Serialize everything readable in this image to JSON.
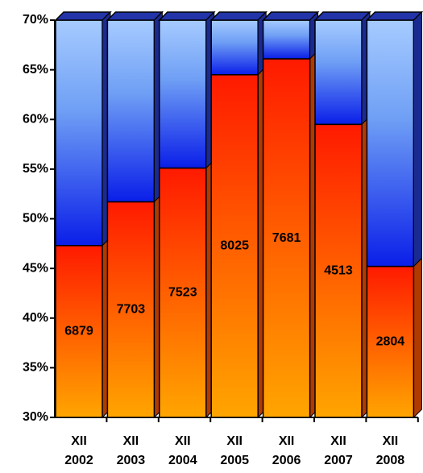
{
  "chart_data": {
    "type": "bar",
    "categories": [
      "XII 2002",
      "XII 2003",
      "XII 2004",
      "XII 2005",
      "XII 2006",
      "XII 2007",
      "XII 2008"
    ],
    "values": [
      47.3,
      51.7,
      55.1,
      64.5,
      66.1,
      59.5,
      45.2
    ],
    "data_labels": [
      6879,
      7703,
      7523,
      8025,
      7681,
      4513,
      2804
    ],
    "ylim": [
      30,
      70
    ],
    "yticks": [
      {
        "value": 30,
        "label": "30%"
      },
      {
        "value": 35,
        "label": "35%"
      },
      {
        "value": 40,
        "label": "40%"
      },
      {
        "value": 45,
        "label": "45%"
      },
      {
        "value": 50,
        "label": "50%"
      },
      {
        "value": 55,
        "label": "55%"
      },
      {
        "value": 60,
        "label": "60%"
      },
      {
        "value": 65,
        "label": "65%"
      },
      {
        "value": 70,
        "label": "70%"
      }
    ]
  }
}
